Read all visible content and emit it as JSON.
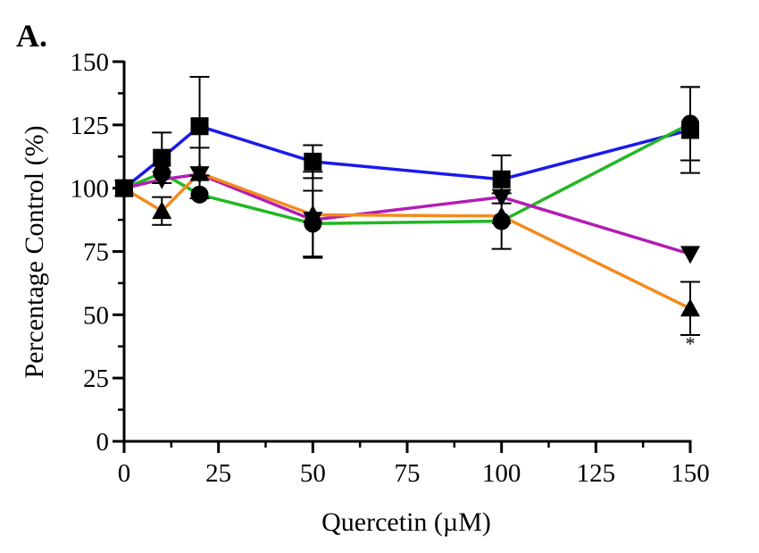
{
  "chart_data": {
    "type": "line",
    "panel_label": "A.",
    "xlabel": "Quercetin (µM)",
    "ylabel": "Percentage Control (%)",
    "xlim": [
      0,
      150
    ],
    "ylim": [
      0,
      150
    ],
    "xticks": [
      0,
      25,
      50,
      75,
      100,
      125,
      150
    ],
    "yticks": [
      0,
      25,
      50,
      75,
      100,
      125,
      150
    ],
    "grid": false,
    "x": [
      0,
      10,
      20,
      50,
      100,
      150
    ],
    "series": [
      {
        "color": "#1a1aeb",
        "marker": "square",
        "values": [
          100,
          112,
          124.5,
          110.5,
          103.5,
          123
        ],
        "errors": [
          0,
          10,
          19.5,
          6.5,
          9.5,
          17
        ]
      },
      {
        "color": "#22b722",
        "marker": "circle",
        "values": [
          100,
          106,
          97.5,
          86,
          87,
          125.5
        ],
        "errors": [
          0,
          0,
          0,
          13,
          11,
          14.5
        ]
      },
      {
        "color": "#b41cb4",
        "marker": "triangle-down",
        "values": [
          100,
          103.5,
          105.5,
          87.5,
          96.5,
          74
        ],
        "errors": [
          0,
          0,
          0,
          0,
          0,
          0
        ]
      },
      {
        "color": "#f58a1c",
        "marker": "triangle-up",
        "values": [
          100,
          91,
          106,
          89.5,
          89,
          52.5
        ],
        "errors": [
          0,
          5.5,
          10,
          17,
          0,
          10.5
        ]
      }
    ],
    "annotations": [
      {
        "text": "*",
        "x": 150,
        "y": 36
      }
    ]
  }
}
